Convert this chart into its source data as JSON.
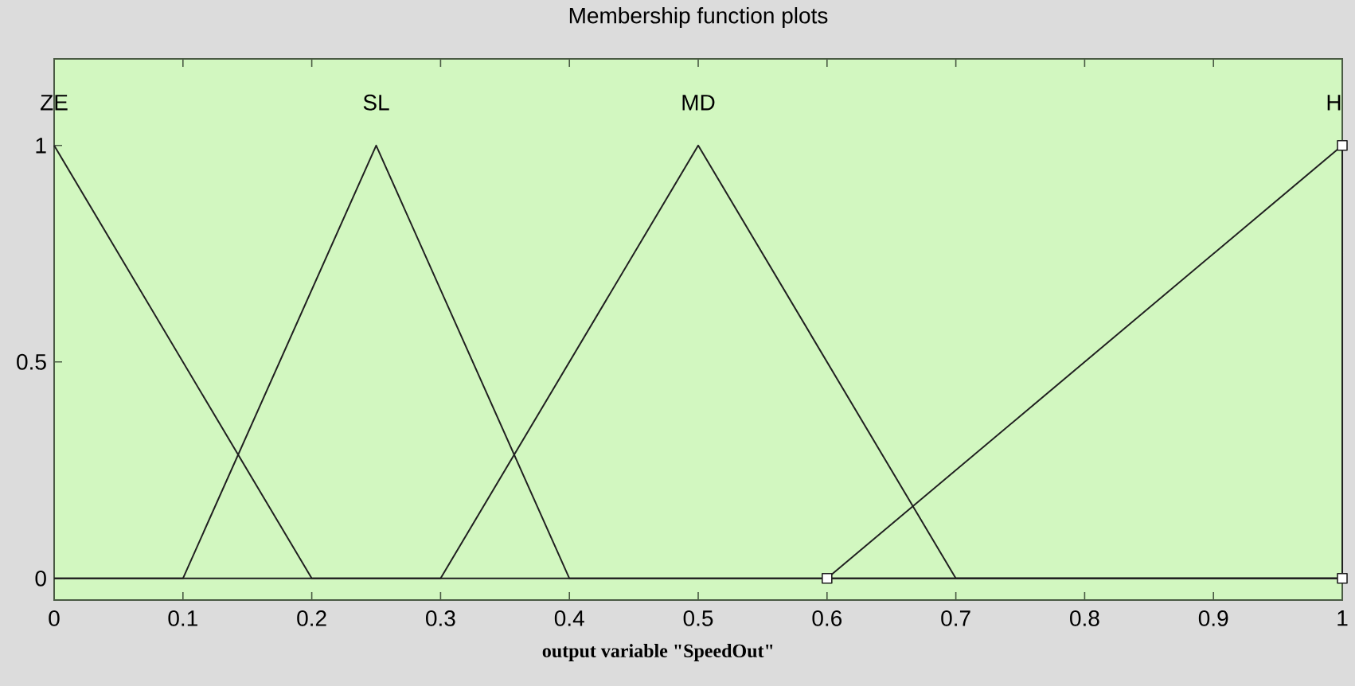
{
  "chart_data": {
    "type": "line",
    "title": "Membership function plots",
    "xlabel": "output variable \"SpeedOut\"",
    "xlim": [
      0,
      1
    ],
    "ylim": [
      -0.05,
      1.2
    ],
    "xticks": [
      0,
      0.1,
      0.2,
      0.3,
      0.4,
      0.5,
      0.6,
      0.7,
      0.8,
      0.9,
      1
    ],
    "yticks": [
      0,
      0.5,
      1
    ],
    "series": [
      {
        "name": "ZE",
        "color": "#202020",
        "x": [
          0,
          0.2,
          1
        ],
        "values": [
          1,
          0,
          0
        ]
      },
      {
        "name": "SL",
        "color": "#202020",
        "x": [
          0,
          0.1,
          0.25,
          0.4,
          1
        ],
        "values": [
          0,
          0,
          1,
          0,
          0
        ]
      },
      {
        "name": "MD",
        "color": "#202020",
        "x": [
          0,
          0.3,
          0.5,
          0.7,
          1
        ],
        "values": [
          0,
          0,
          1,
          0,
          0
        ]
      },
      {
        "name": "H",
        "color": "#202020",
        "x": [
          0.6,
          1,
          1
        ],
        "values": [
          0,
          1,
          0
        ],
        "marker": "square"
      }
    ]
  }
}
